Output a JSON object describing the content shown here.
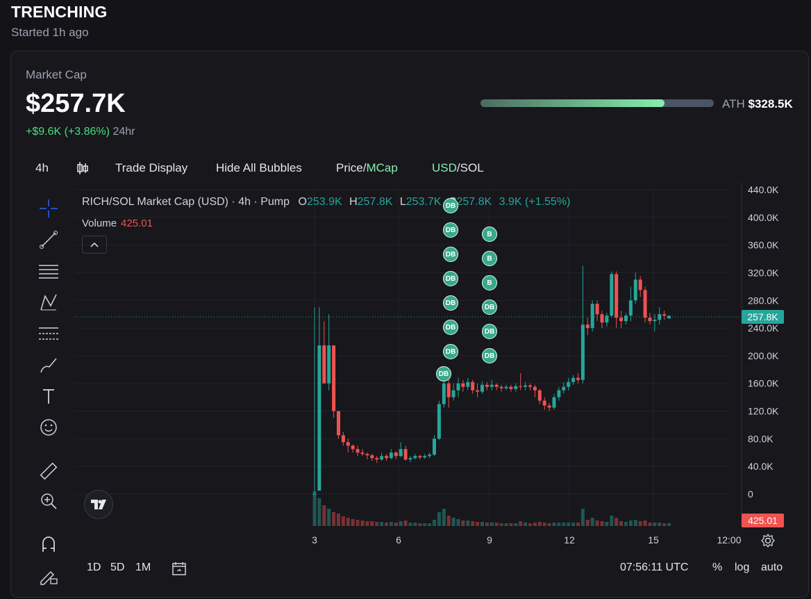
{
  "header": {
    "title": "TRENCHING",
    "subtitle": "Started 1h ago"
  },
  "market": {
    "label": "Market Cap",
    "value": "$257.7K",
    "change": "+$9.6K",
    "change_pct": "(+3.86%)",
    "period": "24hr",
    "ath_label": "ATH",
    "ath_value": "$328.5K",
    "ath_progress": 0.79
  },
  "toolbar": {
    "interval": "4h",
    "trade_display": "Trade Display",
    "hide_bubbles": "Hide All Bubbles",
    "price_label": "Price",
    "mcap_label": "MCap",
    "usd_label": "USD",
    "sol_label": "SOL",
    "separator": "/"
  },
  "legend": {
    "symbol": "RICH/SOL Market Cap (USD) · 4h · Pump",
    "o_label": "O",
    "o_value": "253.9K",
    "h_label": "H",
    "h_value": "257.8K",
    "l_label": "L",
    "l_value": "253.7K",
    "c_label": "C",
    "c_value": "257.8K",
    "change": "3.9K (+1.55%)",
    "volume_label": "Volume",
    "volume_value": "425.01"
  },
  "price_tag": "257.8K",
  "volume_tag": "425.01",
  "bottom": {
    "ranges": [
      "1D",
      "5D",
      "1M"
    ],
    "clock": "07:56:11 UTC",
    "percent": "%",
    "log": "log",
    "auto": "auto"
  },
  "sidebar_tools": [
    "crosshair-icon",
    "trend-line-icon",
    "fib-icon",
    "pattern-icon",
    "forecast-icon",
    "brush-icon",
    "text-icon",
    "emoji-icon",
    "ruler-icon",
    "zoom-icon",
    "magnet-icon",
    "lock-draw-icon"
  ],
  "colors": {
    "up": "#26a69a",
    "down": "#ef5350",
    "accent": "#86efac"
  },
  "chart_data": {
    "type": "candlestick",
    "title": "RICH/SOL Market Cap (USD) · 4h · Pump",
    "y_ticks": [
      "440.0K",
      "400.0K",
      "360.0K",
      "320.0K",
      "280.0K",
      "240.0K",
      "200.0K",
      "160.0K",
      "120.0K",
      "80.0K",
      "40.0K",
      "0"
    ],
    "x_ticks": [
      "3",
      "6",
      "9",
      "12",
      "15",
      "12:00"
    ],
    "ylim": [
      0,
      440000
    ],
    "candles": [
      [
        0,
        0,
        270000,
        0,
        5000
      ],
      [
        5000,
        215000,
        270000,
        5000,
        4000
      ],
      [
        215000,
        160000,
        250000,
        160000,
        3000
      ],
      [
        160000,
        215000,
        260000,
        150000,
        2500
      ],
      [
        215000,
        120000,
        215000,
        110000,
        2000
      ],
      [
        120000,
        85000,
        120000,
        80000,
        1800
      ],
      [
        85000,
        75000,
        90000,
        70000,
        1400
      ],
      [
        75000,
        70000,
        80000,
        60000,
        1200
      ],
      [
        70000,
        65000,
        72000,
        60000,
        1000
      ],
      [
        65000,
        60000,
        70000,
        55000,
        900
      ],
      [
        60000,
        58000,
        65000,
        55000,
        800
      ],
      [
        58000,
        56000,
        60000,
        50000,
        700
      ],
      [
        56000,
        52000,
        58000,
        48000,
        700
      ],
      [
        52000,
        50000,
        55000,
        45000,
        600
      ],
      [
        50000,
        55000,
        60000,
        48000,
        600
      ],
      [
        55000,
        52000,
        58000,
        48000,
        500
      ],
      [
        52000,
        60000,
        65000,
        50000,
        600
      ],
      [
        60000,
        55000,
        62000,
        50000,
        500
      ],
      [
        55000,
        65000,
        75000,
        53000,
        700
      ],
      [
        65000,
        50000,
        70000,
        48000,
        800
      ],
      [
        50000,
        52000,
        55000,
        46000,
        500
      ],
      [
        52000,
        55000,
        58000,
        50000,
        500
      ],
      [
        55000,
        53000,
        57000,
        50000,
        400
      ],
      [
        53000,
        55000,
        58000,
        51000,
        400
      ],
      [
        55000,
        57000,
        60000,
        52000,
        400
      ],
      [
        57000,
        80000,
        85000,
        55000,
        900
      ],
      [
        80000,
        130000,
        135000,
        78000,
        2000
      ],
      [
        130000,
        160000,
        170000,
        125000,
        2500
      ],
      [
        160000,
        140000,
        165000,
        125000,
        1500
      ],
      [
        140000,
        150000,
        160000,
        135000,
        1200
      ],
      [
        150000,
        160000,
        168000,
        140000,
        1000
      ],
      [
        160000,
        155000,
        165000,
        148000,
        800
      ],
      [
        155000,
        162000,
        168000,
        150000,
        800
      ],
      [
        162000,
        150000,
        165000,
        145000,
        700
      ],
      [
        150000,
        148000,
        160000,
        140000,
        600
      ],
      [
        148000,
        158000,
        163000,
        145000,
        600
      ],
      [
        158000,
        155000,
        162000,
        150000,
        500
      ],
      [
        155000,
        158000,
        165000,
        150000,
        500
      ],
      [
        158000,
        155000,
        160000,
        150000,
        500
      ],
      [
        155000,
        153000,
        158000,
        148000,
        400
      ],
      [
        153000,
        155000,
        158000,
        150000,
        400
      ],
      [
        155000,
        152000,
        158000,
        148000,
        400
      ],
      [
        152000,
        156000,
        160000,
        148000,
        400
      ],
      [
        156000,
        155000,
        175000,
        150000,
        700
      ],
      [
        155000,
        157000,
        162000,
        150000,
        500
      ],
      [
        157000,
        155000,
        160000,
        150000,
        400
      ],
      [
        155000,
        150000,
        158000,
        140000,
        500
      ],
      [
        150000,
        135000,
        152000,
        130000,
        600
      ],
      [
        135000,
        128000,
        140000,
        122000,
        500
      ],
      [
        128000,
        125000,
        132000,
        120000,
        400
      ],
      [
        125000,
        140000,
        145000,
        122000,
        500
      ],
      [
        140000,
        150000,
        155000,
        135000,
        500
      ],
      [
        150000,
        155000,
        162000,
        145000,
        500
      ],
      [
        155000,
        162000,
        168000,
        150000,
        500
      ],
      [
        162000,
        168000,
        172000,
        158000,
        500
      ],
      [
        168000,
        165000,
        175000,
        160000,
        500
      ],
      [
        165000,
        245000,
        330000,
        160000,
        2500
      ],
      [
        245000,
        240000,
        255000,
        230000,
        900
      ],
      [
        240000,
        275000,
        280000,
        235000,
        1200
      ],
      [
        275000,
        260000,
        280000,
        250000,
        800
      ],
      [
        260000,
        248000,
        265000,
        240000,
        700
      ],
      [
        248000,
        258000,
        262000,
        242000,
        600
      ],
      [
        258000,
        318000,
        322000,
        255000,
        1500
      ],
      [
        318000,
        255000,
        322000,
        240000,
        1200
      ],
      [
        255000,
        250000,
        265000,
        240000,
        700
      ],
      [
        250000,
        258000,
        262000,
        245000,
        600
      ],
      [
        258000,
        280000,
        300000,
        250000,
        800
      ],
      [
        280000,
        310000,
        320000,
        275000,
        900
      ],
      [
        310000,
        295000,
        315000,
        285000,
        700
      ],
      [
        295000,
        255000,
        300000,
        248000,
        800
      ],
      [
        255000,
        250000,
        262000,
        245000,
        500
      ],
      [
        250000,
        252000,
        260000,
        235000,
        500
      ],
      [
        252000,
        260000,
        270000,
        245000,
        500
      ],
      [
        260000,
        258000,
        265000,
        252000,
        400
      ],
      [
        253900,
        257800,
        257800,
        253700,
        425
      ]
    ]
  }
}
